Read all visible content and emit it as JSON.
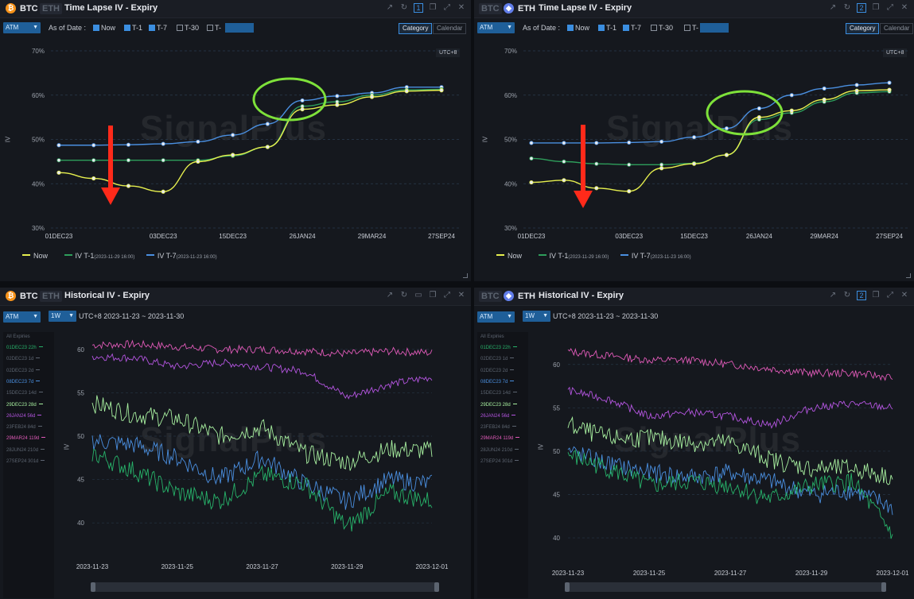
{
  "panels": {
    "tl": {
      "tab_active": "BTC",
      "tab_inactive": "ETH",
      "title": "Time Lapse IV - Expiry",
      "page_num": "1",
      "select": "ATM",
      "asof": "As of Date :",
      "cb_now": "Now",
      "cb_t1": "T-1",
      "cb_t7": "T-7",
      "cb_t30": "T-30",
      "cb_tx": "T-",
      "view_category": "Category",
      "view_calendar": "Calendar",
      "utc": "UTC+8"
    },
    "tr": {
      "tab_inactive": "BTC",
      "tab_active": "ETH",
      "title": "Time Lapse IV - Expiry",
      "page_num": "2",
      "select": "ATM",
      "asof": "As of Date :",
      "cb_now": "Now",
      "cb_t1": "T-1",
      "cb_t7": "T-7",
      "cb_t30": "T-30",
      "cb_tx": "T-",
      "view_category": "Category",
      "view_calendar": "Calendar",
      "utc": "UTC+8"
    },
    "bl": {
      "tab_active": "BTC",
      "tab_inactive": "ETH",
      "title": "Historical IV - Expiry",
      "select": "ATM",
      "range": "1W",
      "range_label": "UTC+8 2023-11-23 ~ 2023-11-30"
    },
    "br": {
      "tab_inactive": "BTC",
      "tab_active": "ETH",
      "title": "Historical IV - Expiry",
      "page_num": "2",
      "select": "ATM",
      "range": "1W",
      "range_label": "UTC+8 2023-11-23 ~ 2023-11-30"
    }
  },
  "watermark": "SignalPlus",
  "sidebar": {
    "header": "All Expiries",
    "items": [
      {
        "label": "01DEC23 22h",
        "color": "#27b36a"
      },
      {
        "label": "02DEC23 1d",
        "color": "#5c6470"
      },
      {
        "label": "02DEC23 2d",
        "color": "#5c6470"
      },
      {
        "label": "08DEC23 7d",
        "color": "#4a8fe0"
      },
      {
        "label": "15DEC23 14d",
        "color": "#5c6470"
      },
      {
        "label": "29DEC23 28d",
        "color": "#a8f0a0"
      },
      {
        "label": "26JAN24 56d",
        "color": "#b455e0"
      },
      {
        "label": "23FEB24 84d",
        "color": "#5c6470"
      },
      {
        "label": "29MAR24 119d",
        "color": "#e05ab8"
      },
      {
        "label": "28JUN24 210d",
        "color": "#5c6470"
      },
      {
        "label": "27SEP24 301d",
        "color": "#5c6470"
      }
    ]
  },
  "chart_data": [
    {
      "type": "line",
      "title": "Time Lapse IV - Expiry (BTC)",
      "ylabel": "IV",
      "ylim": [
        30,
        70
      ],
      "yticks": [
        "70%",
        "60%",
        "50%",
        "40%",
        "30%"
      ],
      "categories": [
        "01DEC23",
        "02DEC23 1d",
        "02DEC23 2d",
        "03DEC23",
        "08DEC23",
        "15DEC23",
        "29DEC23",
        "26JAN24",
        "23FEB24",
        "29MAR24",
        "28JUN24",
        "27SEP24"
      ],
      "tick_labels": [
        "01DEC23",
        "03DEC23",
        "15DEC23",
        "26JAN24",
        "29MAR24",
        "27SEP24"
      ],
      "series": [
        {
          "name": "Now",
          "color": "#e6ef4e",
          "values": [
            42.5,
            41.2,
            39.5,
            38.2,
            45,
            46.5,
            48.3,
            56.8,
            57.8,
            59.6,
            60.9,
            61.1
          ]
        },
        {
          "name": "IV T-1",
          "note": "(2023-11-29 16:00)",
          "color": "#2e9e5b",
          "values": [
            45.3,
            45.3,
            45.3,
            45.3,
            45.3,
            46.3,
            48.3,
            57.5,
            58.5,
            60,
            61.2,
            61.3
          ]
        },
        {
          "name": "IV T-7",
          "note": "(2023-11-23 16:00)",
          "color": "#4a8fe0",
          "values": [
            48.7,
            48.7,
            48.8,
            49,
            49.5,
            51,
            53.5,
            58.8,
            59.8,
            60.5,
            61.8,
            61.8
          ]
        }
      ],
      "legend": "bottom-left",
      "grid": true
    },
    {
      "type": "line",
      "title": "Time Lapse IV - Expiry (ETH)",
      "ylabel": "IV",
      "ylim": [
        30,
        70
      ],
      "yticks": [
        "70%",
        "60%",
        "50%",
        "40%",
        "30%"
      ],
      "categories": [
        "01DEC23",
        "02DEC23 1d",
        "02DEC23 2d",
        "03DEC23",
        "08DEC23",
        "15DEC23",
        "29DEC23",
        "26JAN24",
        "23FEB24",
        "29MAR24",
        "28JUN24",
        "27SEP24"
      ],
      "tick_labels": [
        "01DEC23",
        "03DEC23",
        "15DEC23",
        "26JAN24",
        "29MAR24",
        "27SEP24"
      ],
      "series": [
        {
          "name": "Now",
          "color": "#e6ef4e",
          "values": [
            40.3,
            40.8,
            39,
            38.3,
            43.5,
            44.5,
            46.5,
            55,
            56.5,
            59,
            61,
            61.2
          ]
        },
        {
          "name": "IV T-1",
          "note": "(2023-11-29 16:00)",
          "color": "#2e9e5b",
          "values": [
            45.7,
            45,
            44.5,
            44.3,
            44.3,
            44.6,
            46.5,
            54.5,
            56,
            58.5,
            60.5,
            60.8
          ]
        },
        {
          "name": "IV T-7",
          "note": "(2023-11-23 16:00)",
          "color": "#4a8fe0",
          "values": [
            49.2,
            49.2,
            49.2,
            49.3,
            49.5,
            50.5,
            52.5,
            57,
            60,
            61.5,
            62.3,
            62.8
          ]
        }
      ],
      "legend": "bottom-left",
      "grid": true
    },
    {
      "type": "line",
      "title": "Historical IV - Expiry (BTC)",
      "ylabel": "IV",
      "ylim": [
        38,
        62
      ],
      "yticks": [
        60,
        55,
        50,
        45,
        40
      ],
      "x": [
        "2023-11-23",
        "2023-11-24",
        "2023-11-25",
        "2023-11-26",
        "2023-11-27",
        "2023-11-28",
        "2023-11-29",
        "2023-11-30",
        "2023-12-01"
      ],
      "tick_labels": [
        "2023-11-23",
        "2023-11-25",
        "2023-11-27",
        "2023-11-29",
        "2023-12-01"
      ],
      "series": [
        {
          "name": "29MAR24 119d",
          "color": "#e05ab8",
          "values": [
            60.5,
            60.6,
            60.3,
            60.0,
            60.0,
            59.8,
            59.5,
            59.8,
            59.6
          ]
        },
        {
          "name": "26JAN24 56d",
          "color": "#b455e0",
          "values": [
            59.2,
            59.0,
            58.0,
            58.5,
            58.0,
            57.5,
            54.5,
            56.0,
            56.8
          ]
        },
        {
          "name": "29DEC23 28d",
          "color": "#a8f0a0",
          "values": [
            53.8,
            52.5,
            52.0,
            50.0,
            51.0,
            48.0,
            47.0,
            48.5,
            48.3
          ]
        },
        {
          "name": "08DEC23 7d",
          "color": "#4a8fe0",
          "values": [
            49.5,
            49.0,
            47.5,
            45.0,
            47.5,
            44.5,
            42.5,
            45.0,
            44.5
          ]
        },
        {
          "name": "01DEC23 22h",
          "color": "#27b36a",
          "values": [
            48.0,
            46.0,
            43.5,
            42.5,
            45.5,
            44.5,
            39.5,
            43.5,
            42.5
          ]
        }
      ],
      "grid": true
    },
    {
      "type": "line",
      "title": "Historical IV - Expiry (ETH)",
      "ylabel": "IV",
      "ylim": [
        39,
        63
      ],
      "yticks": [
        60,
        55,
        50,
        45,
        40
      ],
      "x": [
        "2023-11-23",
        "2023-11-24",
        "2023-11-25",
        "2023-11-26",
        "2023-11-27",
        "2023-11-28",
        "2023-11-29",
        "2023-11-30",
        "2023-12-01"
      ],
      "tick_labels": [
        "2023-11-23",
        "2023-11-25",
        "2023-11-27",
        "2023-11-29",
        "2023-12-01"
      ],
      "series": [
        {
          "name": "29MAR24 119d",
          "color": "#e05ab8",
          "values": [
            61.5,
            61.0,
            60.5,
            60.5,
            60.0,
            59.5,
            59.0,
            59.0,
            58.5
          ]
        },
        {
          "name": "26JAN24 56d",
          "color": "#b455e0",
          "values": [
            57.0,
            56.0,
            54.0,
            54.5,
            54.0,
            53.0,
            55.0,
            55.5,
            55.0
          ]
        },
        {
          "name": "29DEC23 28d",
          "color": "#a8f0a0",
          "values": [
            53.0,
            51.5,
            51.5,
            51.0,
            51.0,
            49.0,
            48.0,
            48.0,
            47.0
          ]
        },
        {
          "name": "08DEC23 7d",
          "color": "#4a8fe0",
          "values": [
            50.0,
            48.5,
            47.5,
            47.0,
            47.5,
            46.5,
            45.0,
            45.5,
            43.5
          ]
        },
        {
          "name": "01DEC23 22h",
          "color": "#27b36a",
          "values": [
            49.5,
            48.0,
            46.0,
            46.5,
            46.0,
            44.5,
            46.0,
            46.5,
            40.5
          ]
        }
      ],
      "grid": true
    }
  ],
  "annotations": {
    "arrow_color": "#ff2a1a",
    "circle_color": "#7ee13a"
  }
}
